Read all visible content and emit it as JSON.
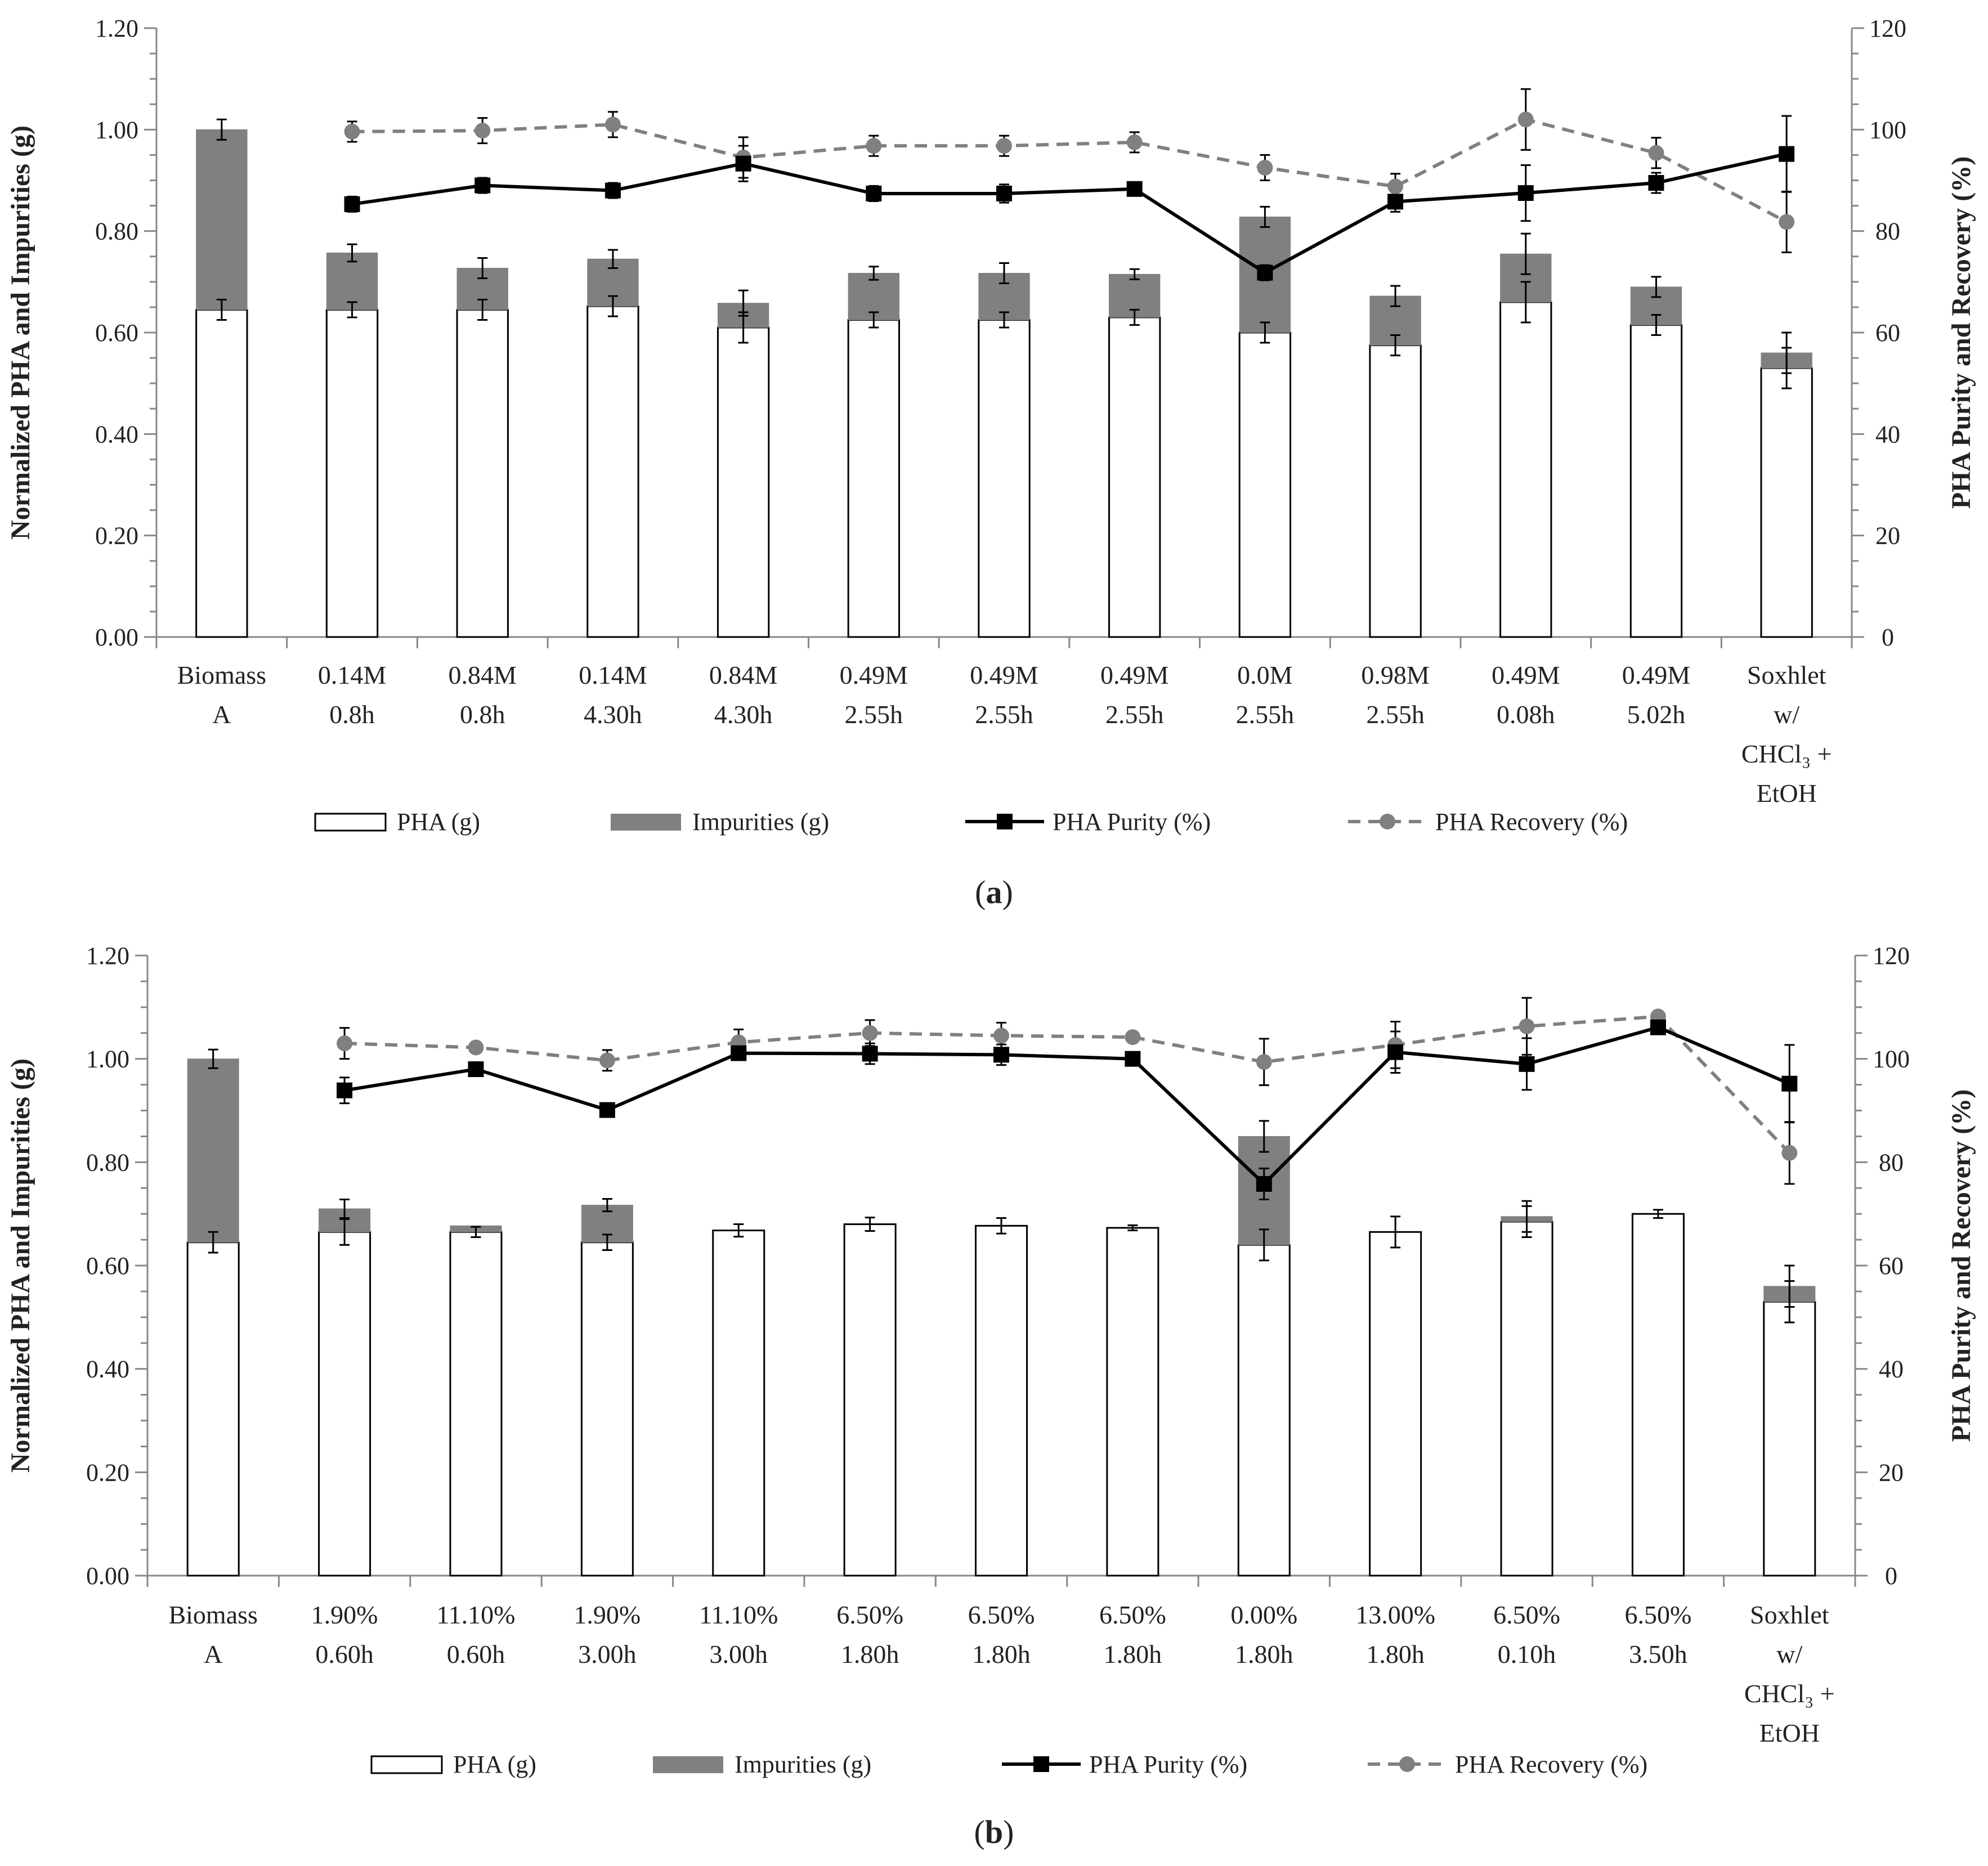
{
  "figure": {
    "panels": [
      {
        "label_open": "(",
        "label_letter": "a",
        "label_close": ")"
      },
      {
        "label_open": "(",
        "label_letter": "b",
        "label_close": ")"
      }
    ]
  },
  "chart_data": [
    {
      "type": "bar",
      "panel": "a",
      "title": "",
      "ylabel": "Normalized PHA  and Impurities (g)",
      "y2label": "PHA Purity and Recovery (%)",
      "ylim": [
        0,
        1.2
      ],
      "y2lim": [
        0,
        120
      ],
      "yticks": [
        "0.00",
        "0.20",
        "0.40",
        "0.60",
        "0.80",
        "1.00",
        "1.20"
      ],
      "y2ticks": [
        "0",
        "20",
        "40",
        "60",
        "80",
        "100",
        "120"
      ],
      "categories": [
        [
          "Biomass",
          "A"
        ],
        [
          "0.14M",
          "0.8h"
        ],
        [
          "0.84M",
          "0.8h"
        ],
        [
          "0.14M",
          "4.30h"
        ],
        [
          "0.84M",
          "4.30h"
        ],
        [
          "0.49M",
          "2.55h"
        ],
        [
          "0.49M",
          "2.55h"
        ],
        [
          "0.49M",
          "2.55h"
        ],
        [
          "0.0M",
          "2.55h"
        ],
        [
          "0.98M",
          "2.55h"
        ],
        [
          "0.49M",
          "0.08h"
        ],
        [
          "0.49M",
          "5.02h"
        ],
        [
          "Soxhlet",
          "w/",
          "CHCl₃ +",
          "EtOH"
        ]
      ],
      "series": [
        {
          "name": "PHA (g)",
          "kind": "bar",
          "axis": "left",
          "values": [
            0.645,
            0.645,
            0.645,
            0.652,
            0.61,
            0.625,
            0.625,
            0.63,
            0.6,
            0.575,
            0.66,
            0.615,
            0.53
          ],
          "errors": [
            0.02,
            0.015,
            0.02,
            0.02,
            0.03,
            0.015,
            0.015,
            0.015,
            0.02,
            0.02,
            0.04,
            0.02,
            0.04
          ]
        },
        {
          "name": "Impurities (g)",
          "kind": "bar",
          "axis": "left",
          "values": [
            0.355,
            0.112,
            0.082,
            0.093,
            0.048,
            0.092,
            0.092,
            0.085,
            0.228,
            0.097,
            0.095,
            0.075,
            0.03
          ],
          "errors": [
            0.02,
            0.017,
            0.02,
            0.018,
            0.025,
            0.013,
            0.02,
            0.01,
            0.02,
            0.02,
            0.04,
            0.02,
            0.04
          ]
        },
        {
          "name": "PHA Purity (%)",
          "kind": "line",
          "axis": "right",
          "values": [
            null,
            85.3,
            89.0,
            88.0,
            93.3,
            87.4,
            87.4,
            88.3,
            71.8,
            85.8,
            87.5,
            89.5,
            95.2
          ],
          "errors": [
            null,
            1.5,
            1.5,
            1.5,
            3.5,
            1.5,
            1.8,
            1.0,
            1.5,
            2.0,
            5.5,
            2.0,
            7.5
          ]
        },
        {
          "name": "PHA Recovery (%)",
          "kind": "dashed-line",
          "axis": "right",
          "values": [
            null,
            99.6,
            99.8,
            101.0,
            94.5,
            96.8,
            96.8,
            97.5,
            92.5,
            88.8,
            102.0,
            95.4,
            81.8
          ],
          "errors": [
            null,
            2.0,
            2.5,
            2.5,
            4.0,
            2.0,
            2.0,
            2.0,
            2.5,
            2.5,
            6.0,
            3.0,
            6.0
          ]
        }
      ],
      "legend": [
        "PHA (g)",
        "Impurities (g)",
        "PHA Purity (%)",
        "PHA Recovery (%)"
      ],
      "legend_position": "bottom"
    },
    {
      "type": "bar",
      "panel": "b",
      "title": "",
      "ylabel": "Normalized PHA  and Impurities (g)",
      "y2label": "PHA Purity and Recovery (%)",
      "ylim": [
        0,
        1.2
      ],
      "y2lim": [
        0,
        120
      ],
      "yticks": [
        "0.00",
        "0.20",
        "0.40",
        "0.60",
        "0.80",
        "1.00",
        "1.20"
      ],
      "y2ticks": [
        "0",
        "20",
        "40",
        "60",
        "80",
        "100",
        "120"
      ],
      "categories": [
        [
          "Biomass",
          "A"
        ],
        [
          "1.90%",
          "0.60h"
        ],
        [
          "11.10%",
          "0.60h"
        ],
        [
          "1.90%",
          "3.00h"
        ],
        [
          "11.10%",
          "3.00h"
        ],
        [
          "6.50%",
          "1.80h"
        ],
        [
          "6.50%",
          "1.80h"
        ],
        [
          "6.50%",
          "1.80h"
        ],
        [
          "0.00%",
          "1.80h"
        ],
        [
          "13.00%",
          "1.80h"
        ],
        [
          "6.50%",
          "0.10h"
        ],
        [
          "6.50%",
          "3.50h"
        ],
        [
          "Soxhlet",
          "w/",
          "CHCl₃ +",
          "EtOH"
        ]
      ],
      "series": [
        {
          "name": "PHA (g)",
          "kind": "bar",
          "axis": "left",
          "values": [
            0.645,
            0.665,
            0.665,
            0.645,
            0.668,
            0.68,
            0.677,
            0.673,
            0.64,
            0.665,
            0.685,
            0.7,
            0.53
          ],
          "errors": [
            0.02,
            0.025,
            0.01,
            0.015,
            0.012,
            0.013,
            0.015,
            0.005,
            0.03,
            0.03,
            0.03,
            0.008,
            0.04
          ]
        },
        {
          "name": "Impurities (g)",
          "kind": "bar",
          "axis": "left",
          "values": [
            0.355,
            0.045,
            0.012,
            0.072,
            0.0,
            0.0,
            0.0,
            0.0,
            0.21,
            0.0,
            0.01,
            0.0,
            0.03
          ],
          "errors": [
            0.018,
            0.018,
            0.0,
            0.012,
            0.0,
            0.0,
            0.0,
            0.0,
            0.03,
            0.0,
            0.03,
            0.0,
            0.04
          ]
        },
        {
          "name": "PHA Purity (%)",
          "kind": "line",
          "axis": "right",
          "values": [
            null,
            93.9,
            98.0,
            90.1,
            101.1,
            101.0,
            100.8,
            100.0,
            75.8,
            101.3,
            99.0,
            106.1,
            95.2
          ],
          "errors": [
            null,
            2.5,
            0.5,
            0.5,
            0.5,
            2.0,
            2.0,
            0.3,
            3.0,
            4.0,
            5.0,
            0.5,
            7.5
          ]
        },
        {
          "name": "PHA Recovery (%)",
          "kind": "dashed-line",
          "axis": "right",
          "values": [
            null,
            103.0,
            102.2,
            99.7,
            103.2,
            105.0,
            104.5,
            104.2,
            99.4,
            102.7,
            106.3,
            108.2,
            81.8
          ],
          "errors": [
            null,
            3.0,
            1.0,
            2.0,
            2.5,
            2.5,
            2.5,
            0.8,
            4.5,
            4.5,
            5.5,
            0.8,
            6.0
          ]
        }
      ],
      "legend": [
        "PHA (g)",
        "Impurities (g)",
        "PHA Purity (%)",
        "PHA Recovery (%)"
      ],
      "legend_position": "bottom"
    }
  ],
  "colors": {
    "pha_fill": "#ffffff",
    "impurities_fill": "#808080",
    "purity_line": "#000000",
    "recovery_line": "#808080",
    "axis": "#888888",
    "text": "#222222"
  }
}
